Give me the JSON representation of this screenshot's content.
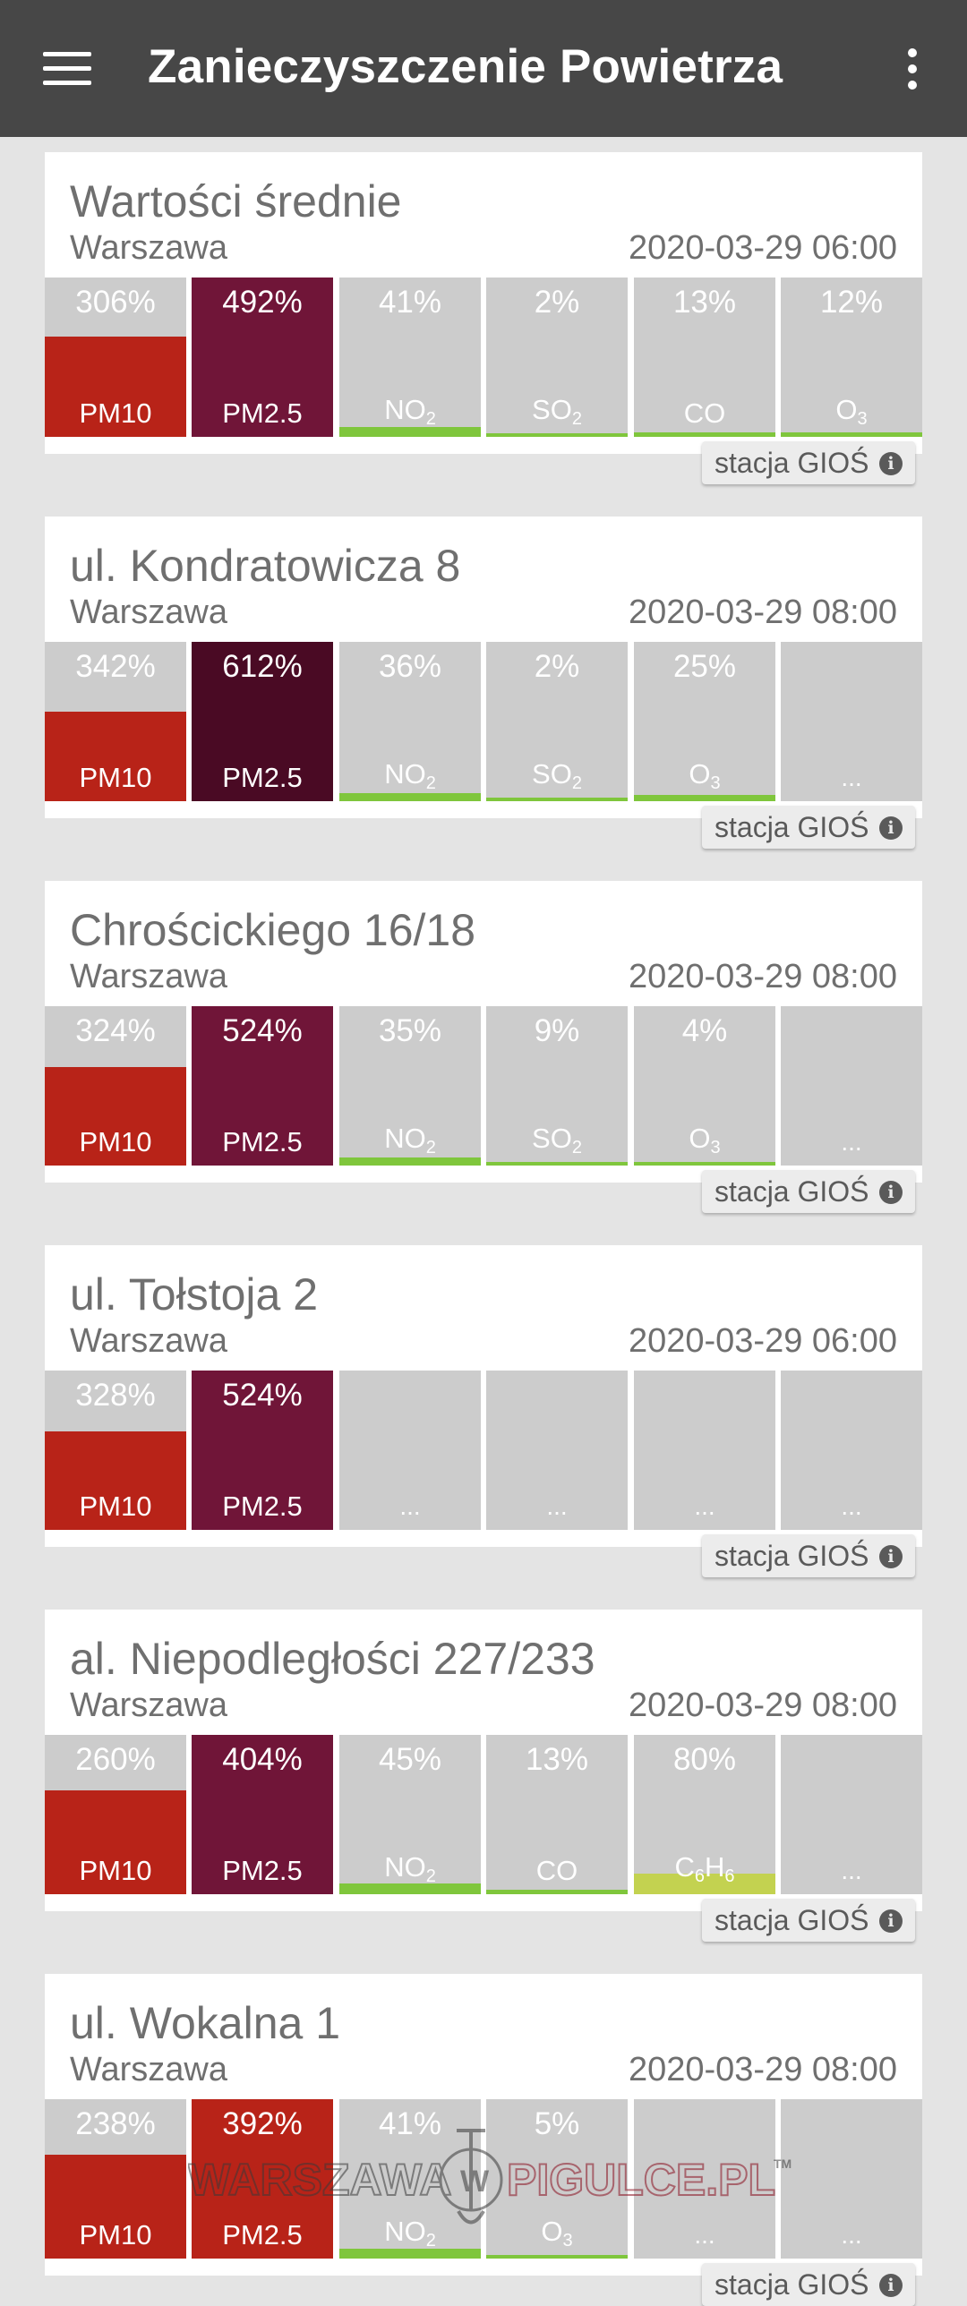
{
  "app": {
    "title": "Zanieczyszczenie Powietrza"
  },
  "colors": {
    "pm10": "#b82318",
    "pm25": "#701538",
    "pm25_dark": "#4a0a24",
    "good": "#7fc63c",
    "moderate": "#c3d250",
    "tile_bg": "#cccccc"
  },
  "icons": {
    "menu": "menu-icon",
    "more": "more-vert-icon",
    "info": "info-icon"
  },
  "cards": [
    {
      "title": "Wartości średnie",
      "city": "Warszawa",
      "time": "2020-03-29 06:00",
      "station": "stacja GIOŚ",
      "tiles": [
        {
          "pct": "306%",
          "name": "PM10",
          "sub": "",
          "color": "pm10",
          "level": 0.63
        },
        {
          "pct": "492%",
          "name": "PM2.5",
          "sub": "",
          "color": "pm25",
          "level": 1.0
        },
        {
          "pct": "41%",
          "name": "NO",
          "sub": "2",
          "color": "good",
          "level": 0.06
        },
        {
          "pct": "2%",
          "name": "SO",
          "sub": "2",
          "color": "good",
          "level": 0.02
        },
        {
          "pct": "13%",
          "name": "CO",
          "sub": "",
          "color": "good",
          "level": 0.03
        },
        {
          "pct": "12%",
          "name": "O",
          "sub": "3",
          "color": "good",
          "level": 0.03
        }
      ]
    },
    {
      "title": "ul. Kondratowicza 8",
      "city": "Warszawa",
      "time": "2020-03-29 08:00",
      "station": "stacja GIOŚ",
      "tiles": [
        {
          "pct": "342%",
          "name": "PM10",
          "sub": "",
          "color": "pm10",
          "level": 0.56
        },
        {
          "pct": "612%",
          "name": "PM2.5",
          "sub": "",
          "color": "pm25_dark",
          "level": 1.0
        },
        {
          "pct": "36%",
          "name": "NO",
          "sub": "2",
          "color": "good",
          "level": 0.05
        },
        {
          "pct": "2%",
          "name": "SO",
          "sub": "2",
          "color": "good",
          "level": 0.02
        },
        {
          "pct": "25%",
          "name": "O",
          "sub": "3",
          "color": "good",
          "level": 0.04
        },
        {
          "pct": "",
          "name": "...",
          "sub": "",
          "color": "",
          "level": 0
        }
      ]
    },
    {
      "title": "Chrościckiego 16/18",
      "city": "Warszawa",
      "time": "2020-03-29 08:00",
      "station": "stacja GIOŚ",
      "tiles": [
        {
          "pct": "324%",
          "name": "PM10",
          "sub": "",
          "color": "pm10",
          "level": 0.62
        },
        {
          "pct": "524%",
          "name": "PM2.5",
          "sub": "",
          "color": "pm25",
          "level": 1.0
        },
        {
          "pct": "35%",
          "name": "NO",
          "sub": "2",
          "color": "good",
          "level": 0.05
        },
        {
          "pct": "9%",
          "name": "SO",
          "sub": "2",
          "color": "good",
          "level": 0.02
        },
        {
          "pct": "4%",
          "name": "O",
          "sub": "3",
          "color": "good",
          "level": 0.02
        },
        {
          "pct": "",
          "name": "...",
          "sub": "",
          "color": "",
          "level": 0
        }
      ]
    },
    {
      "title": "ul. Tołstoja 2",
      "city": "Warszawa",
      "time": "2020-03-29 06:00",
      "station": "stacja GIOŚ",
      "tiles": [
        {
          "pct": "328%",
          "name": "PM10",
          "sub": "",
          "color": "pm10",
          "level": 0.62
        },
        {
          "pct": "524%",
          "name": "PM2.5",
          "sub": "",
          "color": "pm25",
          "level": 1.0
        },
        {
          "pct": "",
          "name": "...",
          "sub": "",
          "color": "",
          "level": 0
        },
        {
          "pct": "",
          "name": "...",
          "sub": "",
          "color": "",
          "level": 0
        },
        {
          "pct": "",
          "name": "...",
          "sub": "",
          "color": "",
          "level": 0
        },
        {
          "pct": "",
          "name": "...",
          "sub": "",
          "color": "",
          "level": 0
        }
      ]
    },
    {
      "title": "al. Niepodległości 227/233",
      "city": "Warszawa",
      "time": "2020-03-29 08:00",
      "station": "stacja GIOŚ",
      "tiles": [
        {
          "pct": "260%",
          "name": "PM10",
          "sub": "",
          "color": "pm10",
          "level": 0.65
        },
        {
          "pct": "404%",
          "name": "PM2.5",
          "sub": "",
          "color": "pm25",
          "level": 1.0
        },
        {
          "pct": "45%",
          "name": "NO",
          "sub": "2",
          "color": "good",
          "level": 0.07
        },
        {
          "pct": "13%",
          "name": "CO",
          "sub": "",
          "color": "good",
          "level": 0.03
        },
        {
          "pct": "80%",
          "name": "C",
          "sub": "6",
          "name2": "H",
          "sub2": "6",
          "color": "moderate",
          "level": 0.13
        },
        {
          "pct": "",
          "name": "...",
          "sub": "",
          "color": "",
          "level": 0
        }
      ]
    },
    {
      "title": "ul. Wokalna 1",
      "city": "Warszawa",
      "time": "2020-03-29 08:00",
      "station": "stacja GIOŚ",
      "tiles": [
        {
          "pct": "238%",
          "name": "PM10",
          "sub": "",
          "color": "pm10",
          "level": 0.65
        },
        {
          "pct": "392%",
          "name": "PM2.5",
          "sub": "",
          "color": "pm10",
          "level": 1.0
        },
        {
          "pct": "41%",
          "name": "NO",
          "sub": "2",
          "color": "good",
          "level": 0.06
        },
        {
          "pct": "5%",
          "name": "O",
          "sub": "3",
          "color": "good",
          "level": 0.02
        },
        {
          "pct": "",
          "name": "...",
          "sub": "",
          "color": "",
          "level": 0
        },
        {
          "pct": "",
          "name": "...",
          "sub": "",
          "color": "",
          "level": 0
        }
      ]
    }
  ],
  "watermark": {
    "text_left": "WARSZAWA",
    "text_mid": "W",
    "text_right": "PIGULCE.PL",
    "tm": "TM"
  }
}
